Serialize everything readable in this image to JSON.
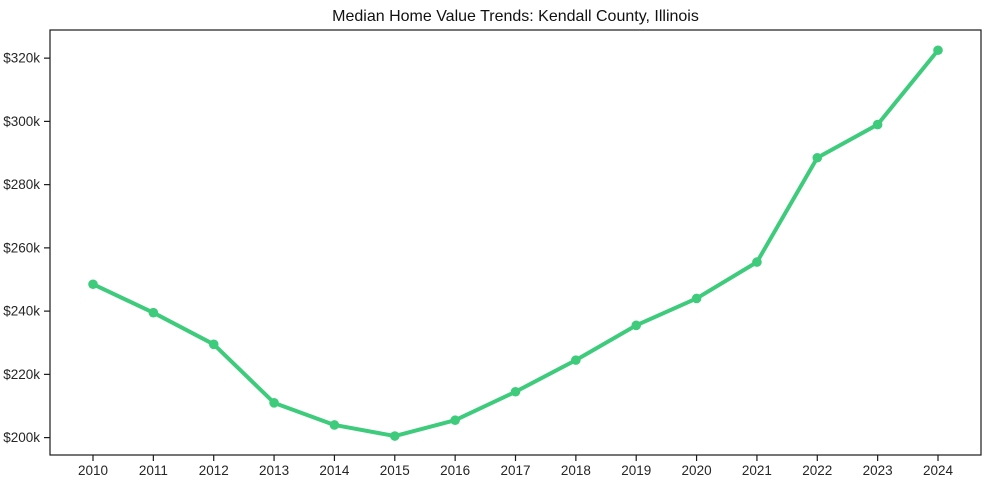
{
  "chart_data": {
    "type": "line",
    "title": "Median Home Value Trends: Kendall County, Illinois",
    "categories": [
      "2010",
      "2011",
      "2012",
      "2013",
      "2014",
      "2015",
      "2016",
      "2017",
      "2018",
      "2019",
      "2020",
      "2021",
      "2022",
      "2023",
      "2024"
    ],
    "series": [
      {
        "name": "median_home_value_thousands_usd",
        "values": [
          248.5,
          239.5,
          229.5,
          211,
          204,
          200.5,
          205.5,
          214.5,
          224.5,
          235.5,
          244,
          255.5,
          288.5,
          299,
          322.5
        ]
      }
    ],
    "y_ticks": [
      200,
      220,
      240,
      260,
      280,
      300,
      320
    ],
    "y_tick_labels": [
      "$200k",
      "$220k",
      "$240k",
      "$260k",
      "$280k",
      "$300k",
      "$320k"
    ],
    "xlabel": "",
    "ylabel": "",
    "ylim": [
      194.5,
      328.9
    ],
    "grid": false,
    "legend": "none",
    "colors": {
      "line": "#3ecb7c",
      "marker": "#3ecb7c",
      "spine": "#1a1a1a",
      "text": "#262626",
      "title_text": "#111111",
      "background": "#ffffff"
    }
  }
}
